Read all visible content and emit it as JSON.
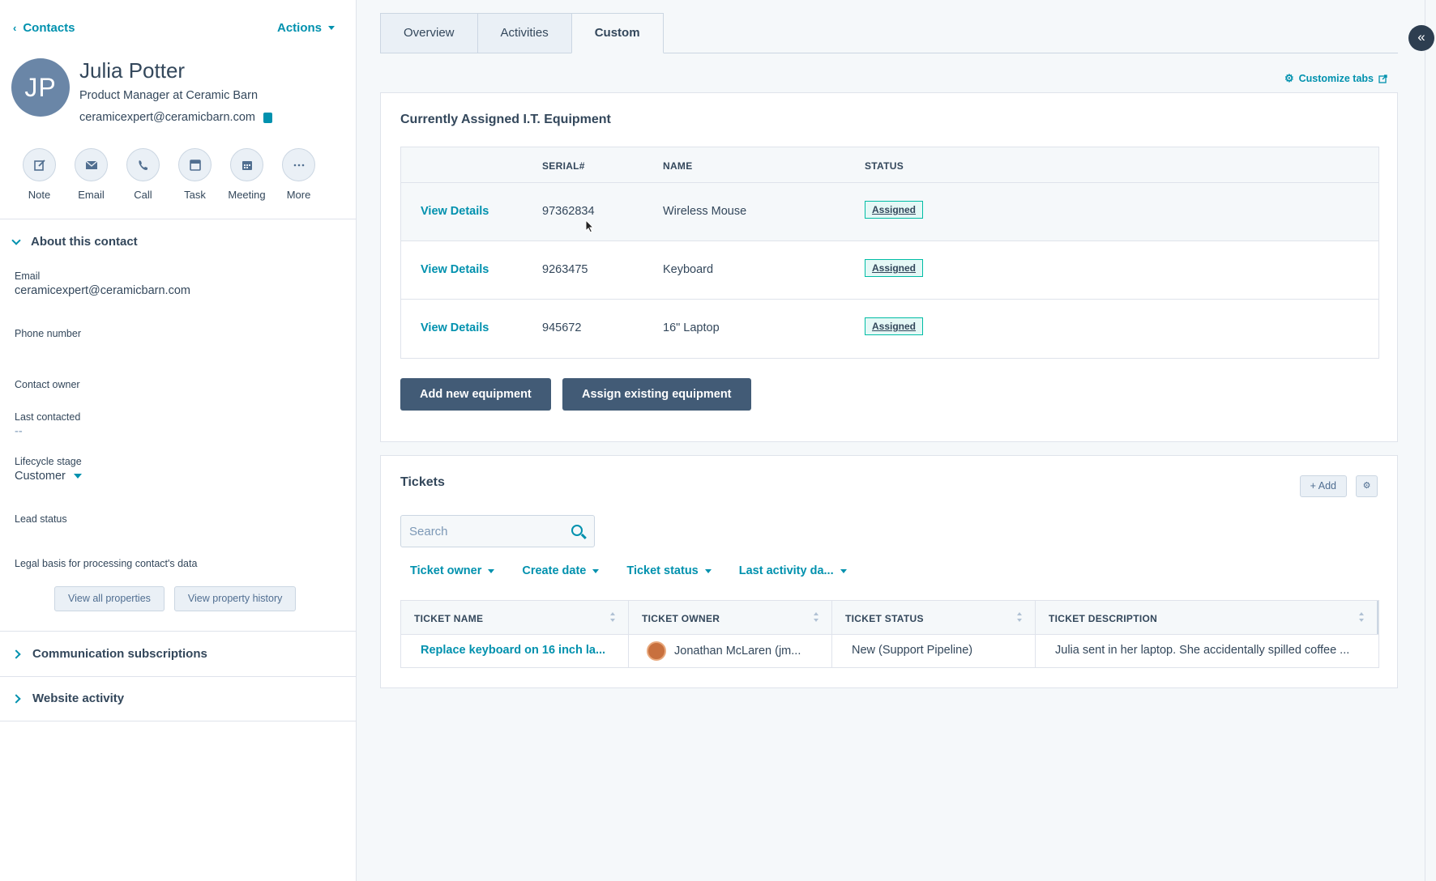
{
  "sidebar": {
    "back_label": "Contacts",
    "actions_label": "Actions",
    "avatar_initials": "JP",
    "name": "Julia Potter",
    "title": "Product Manager at Ceramic Barn",
    "email": "ceramicexpert@ceramicbarn.com",
    "quick_actions": [
      {
        "label": "Note",
        "icon": "note-icon"
      },
      {
        "label": "Email",
        "icon": "email-icon"
      },
      {
        "label": "Call",
        "icon": "call-icon"
      },
      {
        "label": "Task",
        "icon": "task-icon"
      },
      {
        "label": "Meeting",
        "icon": "meeting-icon"
      },
      {
        "label": "More",
        "icon": "more-icon"
      }
    ],
    "about_header": "About this contact",
    "properties": {
      "email_label": "Email",
      "email_value": "ceramicexpert@ceramicbarn.com",
      "phone_label": "Phone number",
      "owner_label": "Contact owner",
      "last_contacted_label": "Last contacted",
      "last_contacted_value": "--",
      "lifecycle_label": "Lifecycle stage",
      "lifecycle_value": "Customer",
      "lead_status_label": "Lead status",
      "legal_basis_label": "Legal basis for processing contact's data"
    },
    "view_all_label": "View all properties",
    "view_history_label": "View property history",
    "comm_subscriptions": "Communication subscriptions",
    "website_activity": "Website activity"
  },
  "tabs": [
    {
      "label": "Overview"
    },
    {
      "label": "Activities"
    },
    {
      "label": "Custom"
    }
  ],
  "customize_tabs": "Customize tabs",
  "equipment": {
    "title": "Currently Assigned I.T. Equipment",
    "headers": {
      "serial": "SERIAL#",
      "name": "NAME",
      "status": "STATUS"
    },
    "rows": [
      {
        "link": "View Details",
        "serial": "97362834",
        "name": "Wireless Mouse",
        "status": "Assigned"
      },
      {
        "link": "View Details",
        "serial": "9263475",
        "name": "Keyboard",
        "status": "Assigned"
      },
      {
        "link": "View Details",
        "serial": "945672",
        "name": "16\" Laptop",
        "status": "Assigned"
      }
    ],
    "add_new_label": "Add new equipment",
    "assign_existing_label": "Assign existing equipment"
  },
  "tickets": {
    "title": "Tickets",
    "add_label": "+ Add",
    "search_placeholder": "Search",
    "filters": [
      "Ticket owner",
      "Create date",
      "Ticket status",
      "Last activity da..."
    ],
    "headers": [
      "TICKET NAME",
      "TICKET OWNER",
      "TICKET STATUS",
      "TICKET DESCRIPTION"
    ],
    "rows": [
      {
        "name": "Replace keyboard on 16 inch la...",
        "owner": "Jonathan McLaren (jm...",
        "status": "New (Support Pipeline)",
        "description": "Julia sent in her laptop. She accidentally spilled coffee ..."
      }
    ]
  },
  "colors": {
    "accent": "#0091ae",
    "dark_button": "#425b76",
    "badge_border": "#00bda5",
    "avatar_bg": "#6a86a7"
  }
}
